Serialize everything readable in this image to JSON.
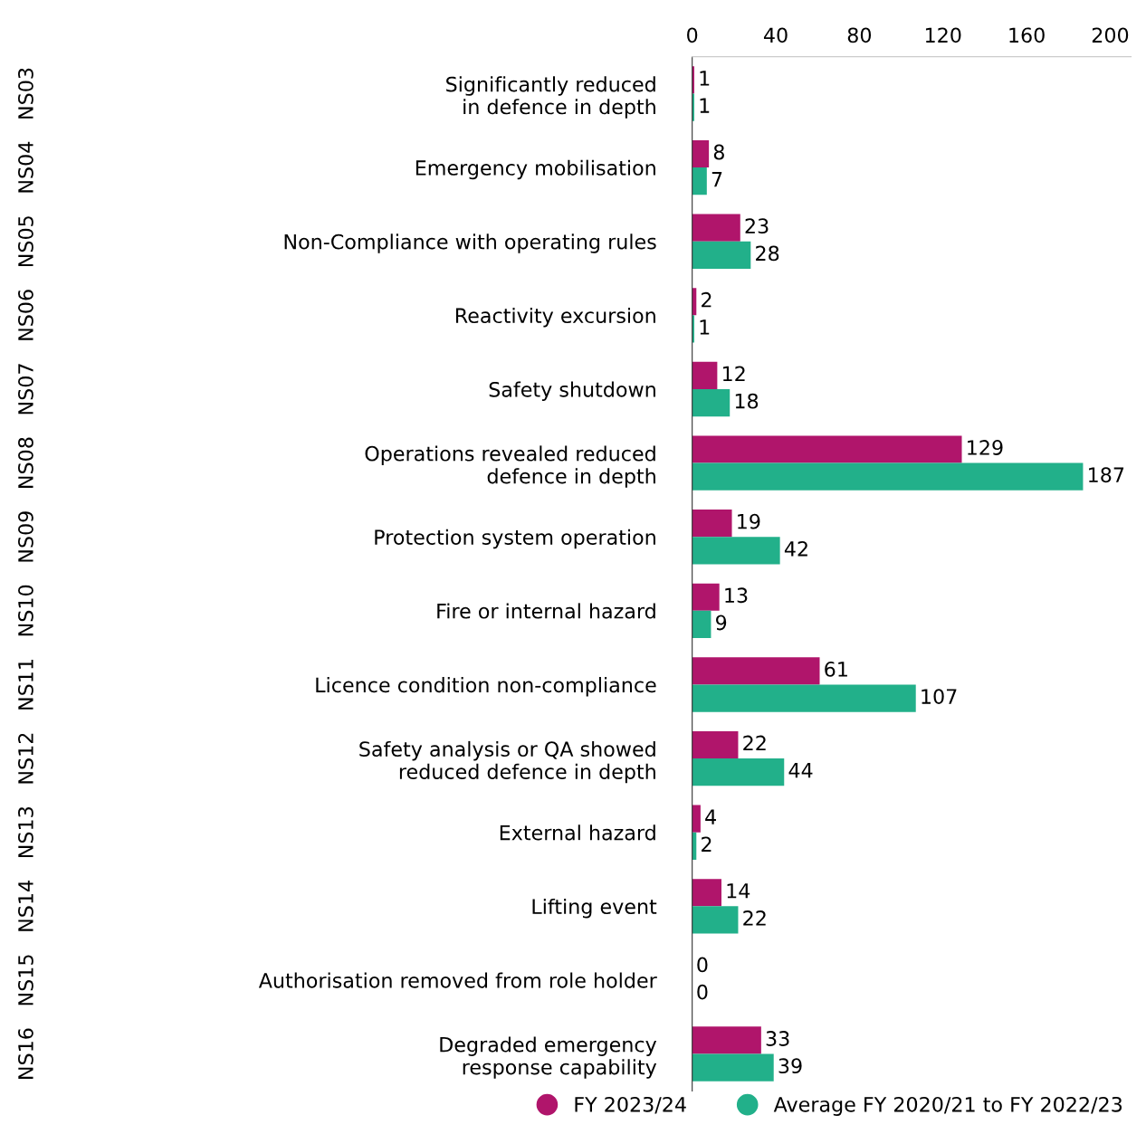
{
  "chart_data": {
    "type": "bar",
    "orientation": "horizontal",
    "categories": [
      "Significantly reduced\nin defence in depth",
      "Emergency mobilisation",
      "Non-Compliance with operating rules",
      "Reactivity excursion",
      "Safety shutdown",
      "Operations revealed reduced\ndefence in depth",
      "Protection system operation",
      "Fire or internal hazard",
      "Licence condition non-compliance",
      "Safety analysis or QA showed\nreduced defence in depth",
      "External hazard",
      "Lifting event",
      "Authorisation removed from role holder",
      "Degraded emergency\nresponse capability"
    ],
    "annotations": [
      "NS03",
      "NS04",
      "NS05",
      "NS06",
      "NS07",
      "NS08",
      "NS09",
      "NS10",
      "NS11",
      "NS12",
      "NS13",
      "NS14",
      "NS15",
      "NS16"
    ],
    "series": [
      {
        "name": "FY 2023/24",
        "color": "#b0156b",
        "values": [
          1,
          8,
          23,
          2,
          12,
          129,
          19,
          13,
          61,
          22,
          4,
          14,
          0,
          33
        ]
      },
      {
        "name": "Average FY 2020/21 to FY 2022/23",
        "color": "#22b08a",
        "values": [
          1,
          7,
          28,
          1,
          18,
          187,
          42,
          9,
          107,
          44,
          2,
          22,
          0,
          39
        ]
      }
    ],
    "xlim": [
      0,
      210
    ],
    "xticks": [
      0,
      40,
      80,
      120,
      160,
      200
    ],
    "data_labels": true,
    "grid": false,
    "legend": "bottom"
  }
}
